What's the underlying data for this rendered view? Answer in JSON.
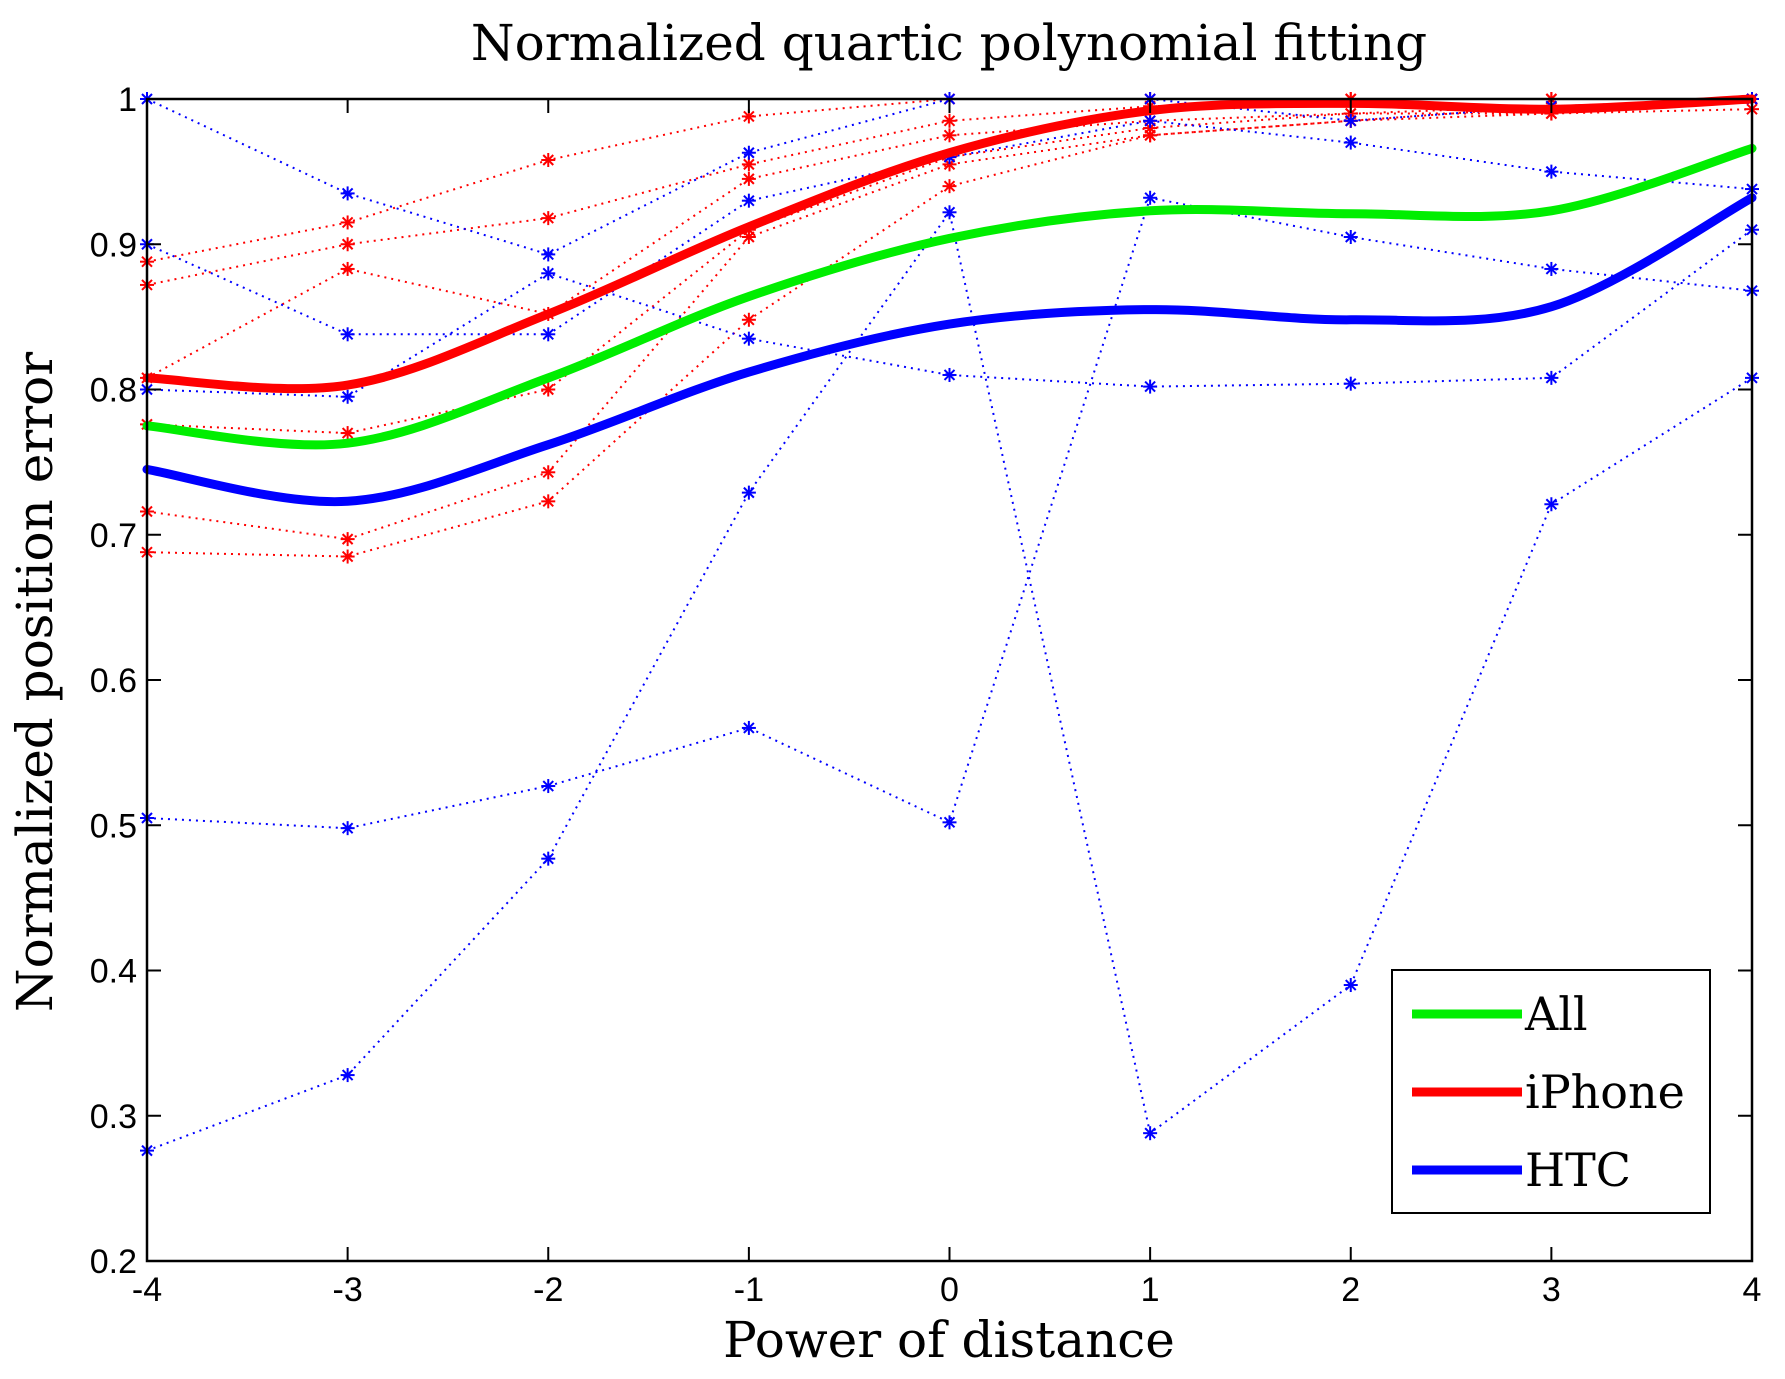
{
  "chart_data": {
    "type": "line",
    "title": "Normalized quartic polynomial fitting",
    "xlabel": "Power of distance",
    "ylabel": "Normalized position error",
    "xlim": [
      -4,
      4
    ],
    "ylim": [
      0.2,
      1
    ],
    "xticks": [
      "-4",
      "-3",
      "-2",
      "-1",
      "0",
      "1",
      "2",
      "3",
      "4"
    ],
    "yticks": [
      "0.2",
      "0.3",
      "0.4",
      "0.5",
      "0.6",
      "0.7",
      "0.8",
      "0.9",
      "1"
    ],
    "grid": false,
    "legend_position": "bottom-right",
    "colors": {
      "all": "#00ee00",
      "iphone": "#ff0000",
      "htc": "#0000ff"
    },
    "x": [
      -4,
      -3,
      -2,
      -1,
      0,
      1,
      2,
      3,
      4
    ],
    "fits": [
      {
        "name": "All",
        "color": "#00ee00",
        "values": [
          0.775,
          0.763,
          0.808,
          0.864,
          0.904,
          0.923,
          0.921,
          0.923,
          0.966
        ]
      },
      {
        "name": "iPhone",
        "color": "#ff0000",
        "values": [
          0.808,
          0.803,
          0.852,
          0.912,
          0.963,
          0.992,
          0.997,
          0.993,
          1.0
        ]
      },
      {
        "name": "HTC",
        "color": "#0000ff",
        "values": [
          0.745,
          0.723,
          0.762,
          0.812,
          0.845,
          0.855,
          0.848,
          0.857,
          0.932
        ]
      }
    ],
    "raw_series": [
      {
        "group": "iPhone",
        "color": "#ff0000",
        "values": [
          0.888,
          0.915,
          0.958,
          0.988,
          1.0,
          1.0,
          1.0,
          1.0,
          1.0
        ]
      },
      {
        "group": "iPhone",
        "color": "#ff0000",
        "values": [
          0.872,
          0.9,
          0.918,
          0.955,
          0.985,
          0.995,
          1.0,
          1.0,
          1.0
        ]
      },
      {
        "group": "iPhone",
        "color": "#ff0000",
        "values": [
          0.808,
          0.883,
          0.852,
          0.945,
          0.975,
          0.985,
          0.99,
          0.995,
          1.0
        ]
      },
      {
        "group": "iPhone",
        "color": "#ff0000",
        "values": [
          0.776,
          0.77,
          0.8,
          0.91,
          0.96,
          0.98,
          0.99,
          0.99,
          1.0
        ]
      },
      {
        "group": "iPhone",
        "color": "#ff0000",
        "values": [
          0.716,
          0.697,
          0.743,
          0.905,
          0.955,
          0.975,
          0.985,
          0.995,
          1.0
        ]
      },
      {
        "group": "iPhone",
        "color": "#ff0000",
        "values": [
          0.688,
          0.685,
          0.723,
          0.848,
          0.94,
          0.975,
          0.985,
          0.99,
          0.993
        ]
      },
      {
        "group": "HTC",
        "color": "#0000ff",
        "values": [
          1.0,
          0.935,
          0.893,
          0.963,
          1.0,
          1.0,
          0.985,
          0.995,
          1.0
        ]
      },
      {
        "group": "HTC",
        "color": "#0000ff",
        "values": [
          0.9,
          0.838,
          0.838,
          0.93,
          0.96,
          0.985,
          0.97,
          0.95,
          0.938
        ]
      },
      {
        "group": "HTC",
        "color": "#0000ff",
        "values": [
          0.8,
          0.795,
          0.88,
          0.835,
          0.81,
          0.802,
          0.804,
          0.808,
          0.91
        ]
      },
      {
        "group": "HTC",
        "color": "#0000ff",
        "values": [
          0.505,
          0.498,
          0.527,
          0.567,
          0.502,
          0.932,
          0.905,
          0.883,
          0.868
        ]
      },
      {
        "group": "HTC",
        "color": "#0000ff",
        "values": [
          0.276,
          0.328,
          0.477,
          0.729,
          0.922,
          0.288,
          0.39,
          0.721,
          0.808
        ]
      }
    ]
  }
}
